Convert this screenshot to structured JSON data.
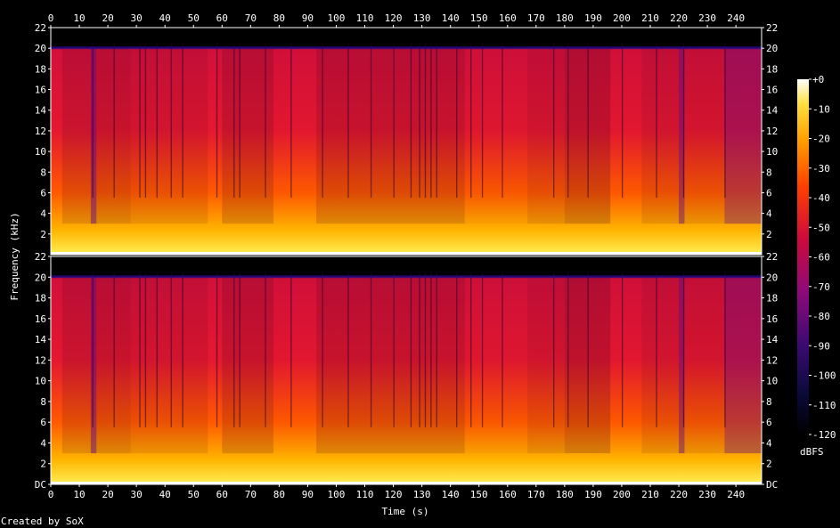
{
  "chart_data": {
    "type": "heatmap",
    "title": "",
    "xlabel": "Time (s)",
    "ylabel": "Frequency (kHz)",
    "x_ticks": [
      "0",
      "10",
      "20",
      "30",
      "40",
      "50",
      "60",
      "70",
      "80",
      "90",
      "100",
      "110",
      "120",
      "130",
      "140",
      "150",
      "160",
      "170",
      "180",
      "190",
      "200",
      "210",
      "220",
      "230",
      "240"
    ],
    "xlim": [
      0,
      249
    ],
    "y_ticks_top": [
      "2",
      "4",
      "6",
      "8",
      "10",
      "12",
      "14",
      "16",
      "18",
      "20",
      "22"
    ],
    "y_ticks_bottom": [
      "DC",
      "2",
      "4",
      "6",
      "8",
      "10",
      "12",
      "14",
      "16",
      "18",
      "20",
      "22"
    ],
    "ylim": [
      0,
      22
    ],
    "channels": 2,
    "colorbar": {
      "unit": "dBFS",
      "ticks": [
        "+0",
        "-10",
        "-20",
        "-30",
        "-40",
        "-50",
        "-60",
        "-70",
        "-80",
        "-90",
        "-100",
        "-110",
        "-120"
      ],
      "range": [
        -120,
        0
      ]
    },
    "cutoff_khz": 20,
    "intensity_segments": [
      {
        "start": 0,
        "end": 4,
        "level": 0.78
      },
      {
        "start": 4,
        "end": 14,
        "level": 0.62
      },
      {
        "start": 14,
        "end": 16,
        "level": 0.25
      },
      {
        "start": 16,
        "end": 28,
        "level": 0.6
      },
      {
        "start": 28,
        "end": 55,
        "level": 0.66
      },
      {
        "start": 55,
        "end": 60,
        "level": 0.8
      },
      {
        "start": 60,
        "end": 78,
        "level": 0.6
      },
      {
        "start": 78,
        "end": 93,
        "level": 0.74
      },
      {
        "start": 93,
        "end": 145,
        "level": 0.6
      },
      {
        "start": 145,
        "end": 167,
        "level": 0.72
      },
      {
        "start": 167,
        "end": 180,
        "level": 0.64
      },
      {
        "start": 180,
        "end": 196,
        "level": 0.55
      },
      {
        "start": 196,
        "end": 207,
        "level": 0.74
      },
      {
        "start": 207,
        "end": 220,
        "level": 0.65
      },
      {
        "start": 220,
        "end": 222,
        "level": 0.3
      },
      {
        "start": 222,
        "end": 236,
        "level": 0.66
      },
      {
        "start": 236,
        "end": 249,
        "level": 0.38
      }
    ],
    "dark_lines": [
      14.5,
      22,
      31,
      33,
      37,
      42,
      46,
      58,
      64,
      66,
      75,
      84,
      95,
      104,
      112,
      120,
      126,
      129,
      131,
      133,
      135,
      142,
      147,
      151,
      158,
      176,
      181,
      188,
      200,
      212,
      221.5,
      236
    ]
  },
  "footer": {
    "credit": "Created by SoX"
  },
  "colors": {
    "background": "#000000",
    "text": "#ffffff"
  }
}
